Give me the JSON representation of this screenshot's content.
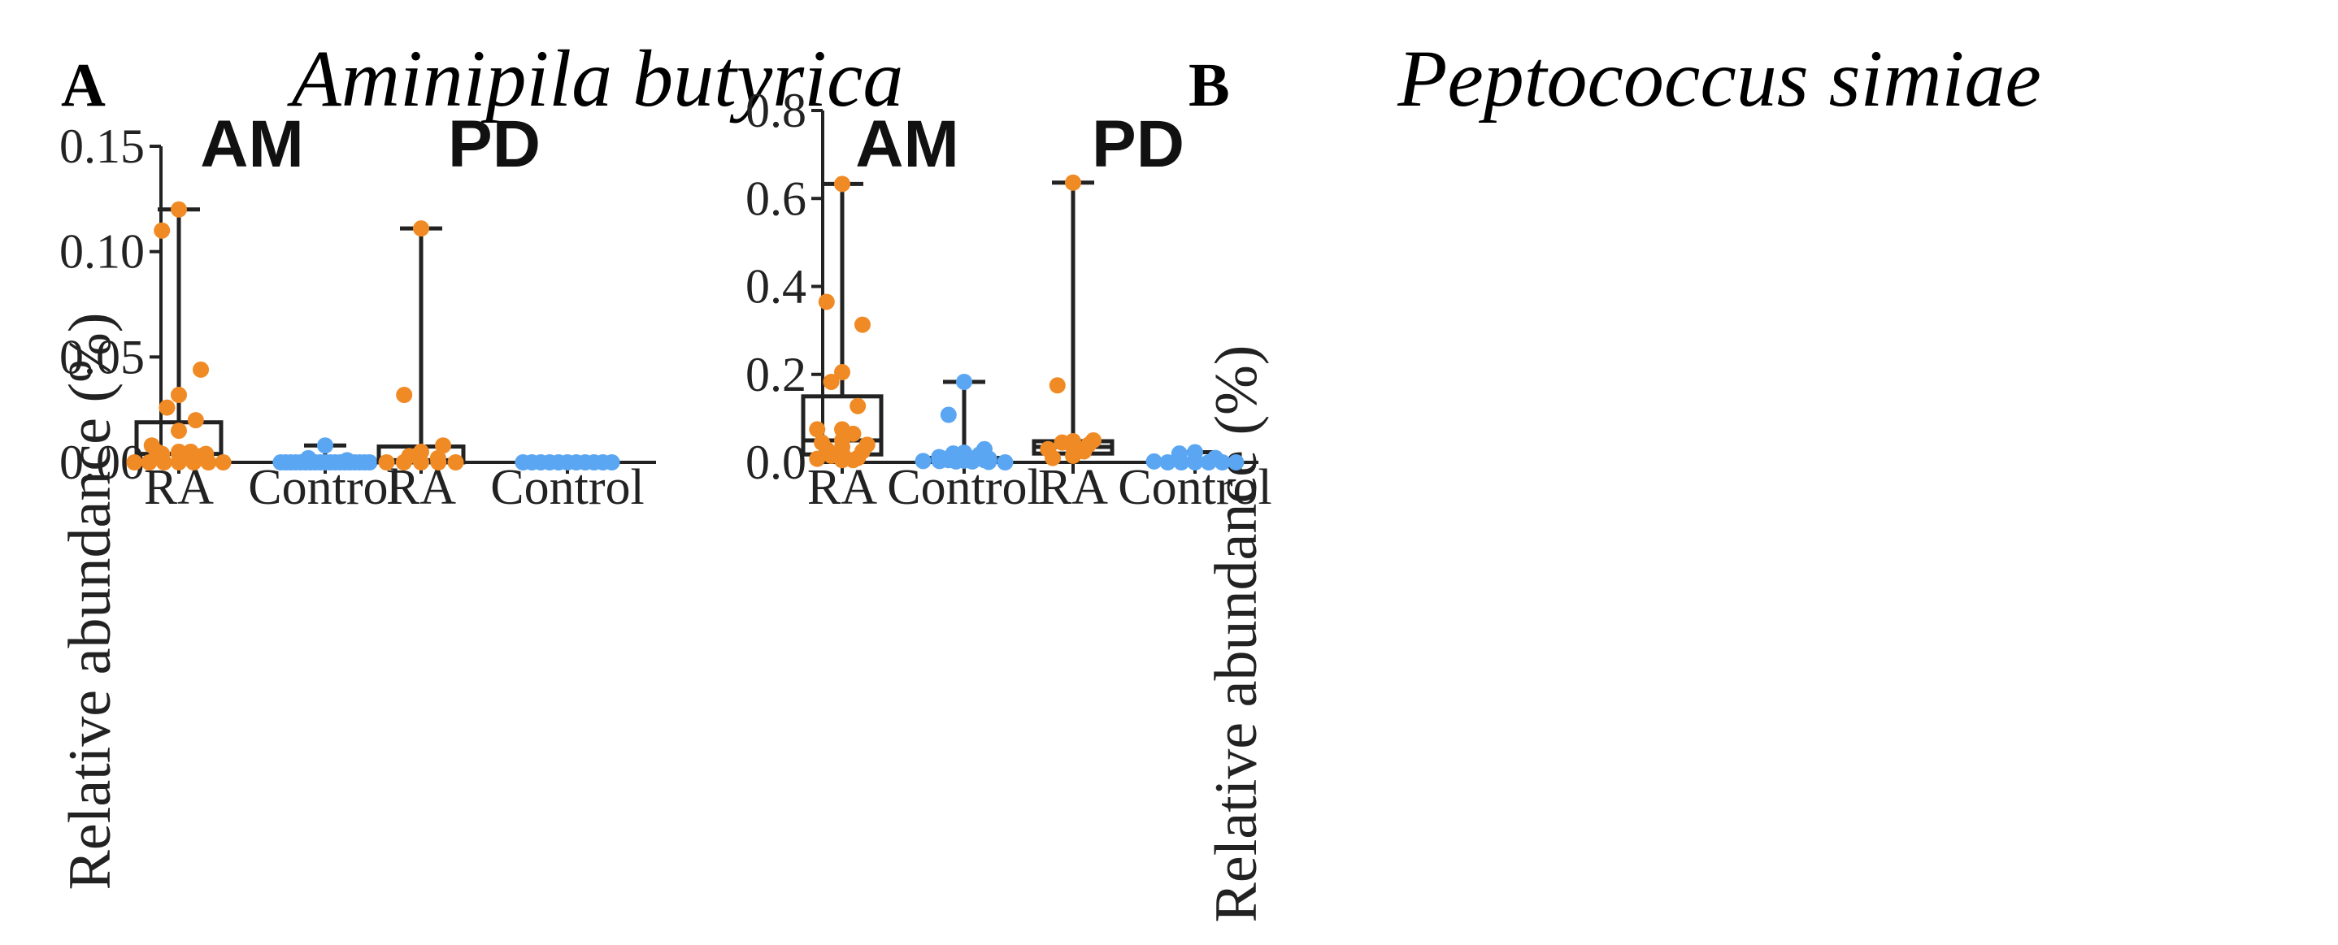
{
  "colors": {
    "ra": "#f08a24",
    "control": "#5aa6f2",
    "axis": "#222222"
  },
  "chart_data": [
    {
      "type": "box",
      "panel": "A",
      "title": "Aminipila butyrica",
      "ylabel": "Relative abundance (%)",
      "ylim": [
        0,
        0.15
      ],
      "yticks": [
        "0.00",
        "0.05",
        "0.10",
        "0.15"
      ],
      "yticks_values": [
        0,
        0.05,
        0.1,
        0.15
      ],
      "groups": [
        {
          "label": "AM",
          "categories": [
            {
              "name": "RA",
              "color_key": "ra",
              "min": 0,
              "q1": 0.0,
              "median": 0.004,
              "q3": 0.019,
              "max": 0.12,
              "points": [
                0.12,
                0.11,
                0.044,
                0.032,
                0.026,
                0.02,
                0.015,
                0.008,
                0.005,
                0.005,
                0.005,
                0.004,
                0.004,
                0.004,
                0.003,
                0.0,
                0.0,
                0.0,
                0.0,
                0.0,
                0.0,
                0.0
              ]
            },
            {
              "name": "Control",
              "color_key": "control",
              "min": 0,
              "q1": 0,
              "median": 0,
              "q3": 0,
              "max": 0.008,
              "points": [
                0.008,
                0.002,
                0.001,
                0.0,
                0.0,
                0.0,
                0.0,
                0.0,
                0.0,
                0.0,
                0.0,
                0.0,
                0.0,
                0.0,
                0.0,
                0.0,
                0.0,
                0.0,
                0.0,
                0.0,
                0.0,
                0.0
              ]
            }
          ]
        },
        {
          "label": "PD",
          "categories": [
            {
              "name": "RA",
              "color_key": "ra",
              "min": 0,
              "q1": 0.0,
              "median": 0.001,
              "q3": 0.0075,
              "max": 0.111,
              "points": [
                0.111,
                0.032,
                0.008,
                0.005,
                0.003,
                0.002,
                0.0,
                0.0,
                0.0,
                0.0,
                0.0
              ]
            },
            {
              "name": "Control",
              "color_key": "control",
              "min": 0,
              "q1": 0,
              "median": 0,
              "q3": 0,
              "max": 0,
              "points": [
                0,
                0,
                0,
                0,
                0,
                0,
                0,
                0,
                0,
                0,
                0
              ]
            }
          ]
        }
      ]
    },
    {
      "type": "box",
      "panel": "B",
      "title": "Peptococcus simiae",
      "ylabel": "Relative abundance (%)",
      "ylim": [
        0,
        0.8
      ],
      "yticks": [
        "0.0",
        "0.2",
        "0.4",
        "0.6",
        "0.8"
      ],
      "yticks_values": [
        0,
        0.2,
        0.4,
        0.6,
        0.8
      ],
      "groups": [
        {
          "label": "AM",
          "categories": [
            {
              "name": "RA",
              "color_key": "ra",
              "min": 0.005,
              "q1": 0.018,
              "median": 0.05,
              "q3": 0.15,
              "max": 0.633,
              "points": [
                0.633,
                0.365,
                0.313,
                0.205,
                0.183,
                0.128,
                0.075,
                0.075,
                0.065,
                0.05,
                0.045,
                0.04,
                0.035,
                0.03,
                0.025,
                0.02,
                0.015,
                0.01,
                0.01,
                0.008,
                0.005,
                0.005
              ]
            },
            {
              "name": "Control",
              "color_key": "control",
              "min": 0,
              "q1": 0.002,
              "median": 0.005,
              "q3": 0.01,
              "max": 0.183,
              "points": [
                0.183,
                0.108,
                0.03,
                0.022,
                0.02,
                0.018,
                0.015,
                0.012,
                0.01,
                0.01,
                0.008,
                0.008,
                0.006,
                0.005,
                0.005,
                0.004,
                0.003,
                0.003,
                0.002,
                0.002,
                0.001,
                0.0
              ]
            }
          ]
        },
        {
          "label": "PD",
          "categories": [
            {
              "name": "RA",
              "color_key": "ra",
              "min": 0,
              "q1": 0.02,
              "median": 0.035,
              "q3": 0.048,
              "max": 0.636,
              "points": [
                0.636,
                0.175,
                0.05,
                0.048,
                0.045,
                0.04,
                0.035,
                0.03,
                0.025,
                0.015,
                0.01
              ]
            },
            {
              "name": "Control",
              "color_key": "control",
              "min": 0,
              "q1": 0,
              "median": 0,
              "q3": 0.002,
              "max": 0.023,
              "points": [
                0.023,
                0.02,
                0.01,
                0.005,
                0.002,
                0.0,
                0.0,
                0.0,
                0.0,
                0.0,
                0.0
              ]
            }
          ]
        }
      ]
    }
  ]
}
